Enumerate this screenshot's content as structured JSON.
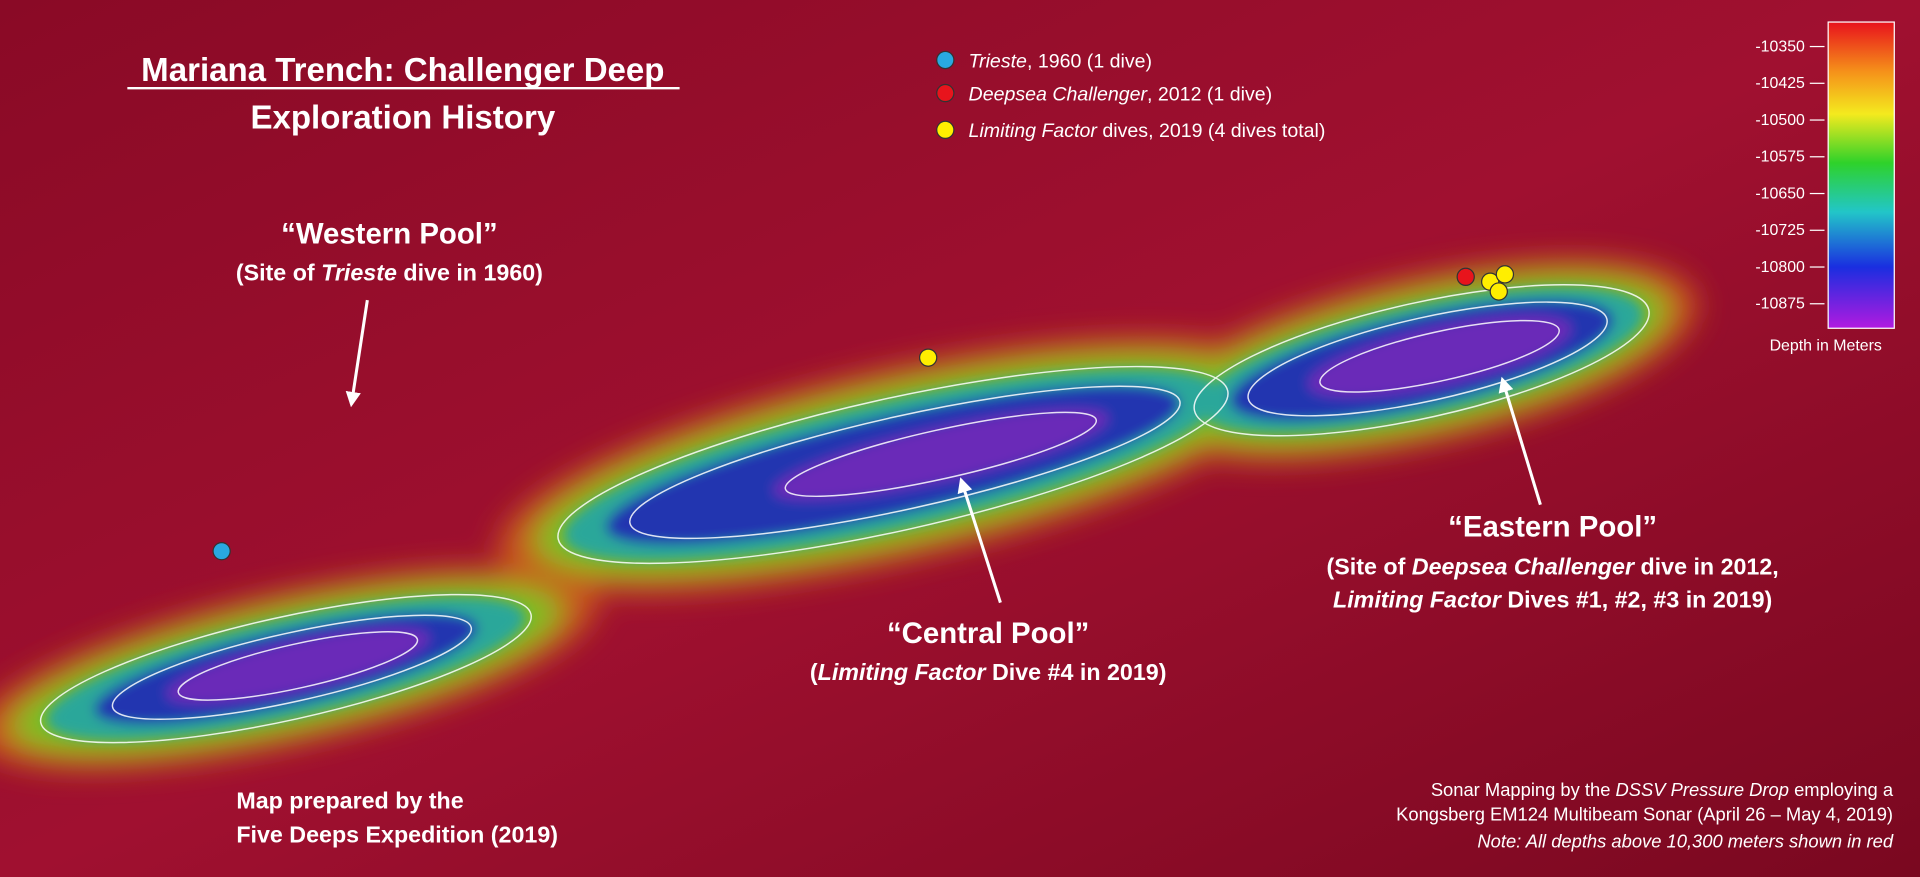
{
  "title": {
    "line1": "Mariana Trench: Challenger Deep",
    "line2": "Exploration History"
  },
  "legend": {
    "items": [
      {
        "vessel": "Trieste",
        "detail": ", 1960 (1 dive)",
        "color": "#29a9e0"
      },
      {
        "vessel": "Deepsea Challenger",
        "detail": ", 2012 (1 dive)",
        "color": "#e8141c"
      },
      {
        "vessel": "Limiting Factor",
        "detail": " dives, 2019 (4 dives total)",
        "color": "#ffee00"
      }
    ]
  },
  "pools": {
    "western": {
      "name": "“Western Pool”",
      "sub": [
        "(Site of ",
        "Trieste",
        " dive in 1960)"
      ]
    },
    "central": {
      "name": "“Central Pool”",
      "sub": [
        "(",
        "Limiting Factor",
        " Dive #4 in 2019)"
      ]
    },
    "eastern": {
      "name": "“Eastern Pool”",
      "sub1": [
        "(Site of ",
        "Deepsea Challenger",
        " dive in 2012,"
      ],
      "sub2": [
        "Limiting Factor",
        " Dives #1, #2, #3 in 2019)"
      ]
    }
  },
  "credits": {
    "left": [
      "Map prepared by the",
      "Five Deeps Expedition (2019)"
    ],
    "right1": [
      "Sonar Mapping by the ",
      "DSSV Pressure Drop",
      " employing a"
    ],
    "right2": "Kongsberg EM124 Multibeam Sonar (April 26 – May 4, 2019)",
    "right3": "Note: All depths above 10,300 meters shown in red"
  },
  "colorbar": {
    "caption": "Depth in Meters",
    "range": [
      -10300,
      -10925
    ],
    "ticks": [
      -10350,
      -10425,
      -10500,
      -10575,
      -10650,
      -10725,
      -10800,
      -10875
    ]
  }
}
